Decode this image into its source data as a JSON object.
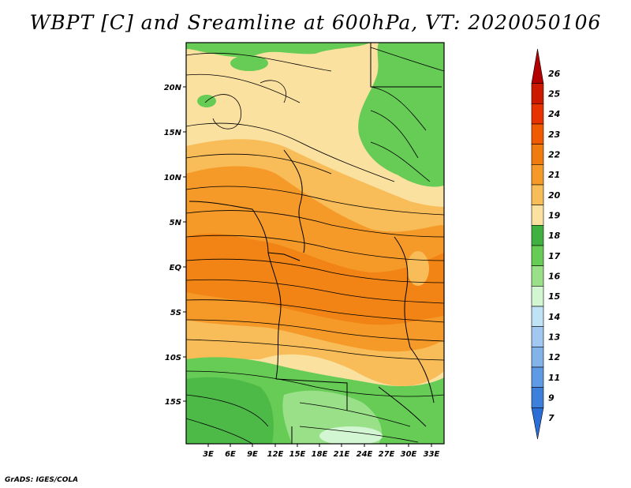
{
  "title": "WBPT [C] and Sreamline at 600hPa, VT: 2020050106",
  "credit": "GrADS: IGES/COLA",
  "map": {
    "lat_labels": [
      "20N",
      "15N",
      "10N",
      "5N",
      "EQ",
      "5S",
      "10S",
      "15S"
    ],
    "lon_labels": [
      "3E",
      "6E",
      "9E",
      "12E",
      "15E",
      "18E",
      "21E",
      "24E",
      "27E",
      "30E",
      "33E"
    ]
  },
  "legend": {
    "labels": [
      "26",
      "25",
      "24",
      "23",
      "22",
      "21",
      "20",
      "19",
      "18",
      "17",
      "16",
      "15",
      "14",
      "13",
      "12",
      "11",
      "9",
      "7"
    ],
    "colors": [
      "#b30000",
      "#cc1a00",
      "#e63300",
      "#f05a00",
      "#f07c10",
      "#f59a28",
      "#f8bc58",
      "#fbe1a0",
      "#40b040",
      "#66cc55",
      "#99e088",
      "#d2f5d2",
      "#bfe2f5",
      "#a0c8f0",
      "#82b4ea",
      "#5f9be5",
      "#3c80dc",
      "#2b6fd6"
    ]
  }
}
